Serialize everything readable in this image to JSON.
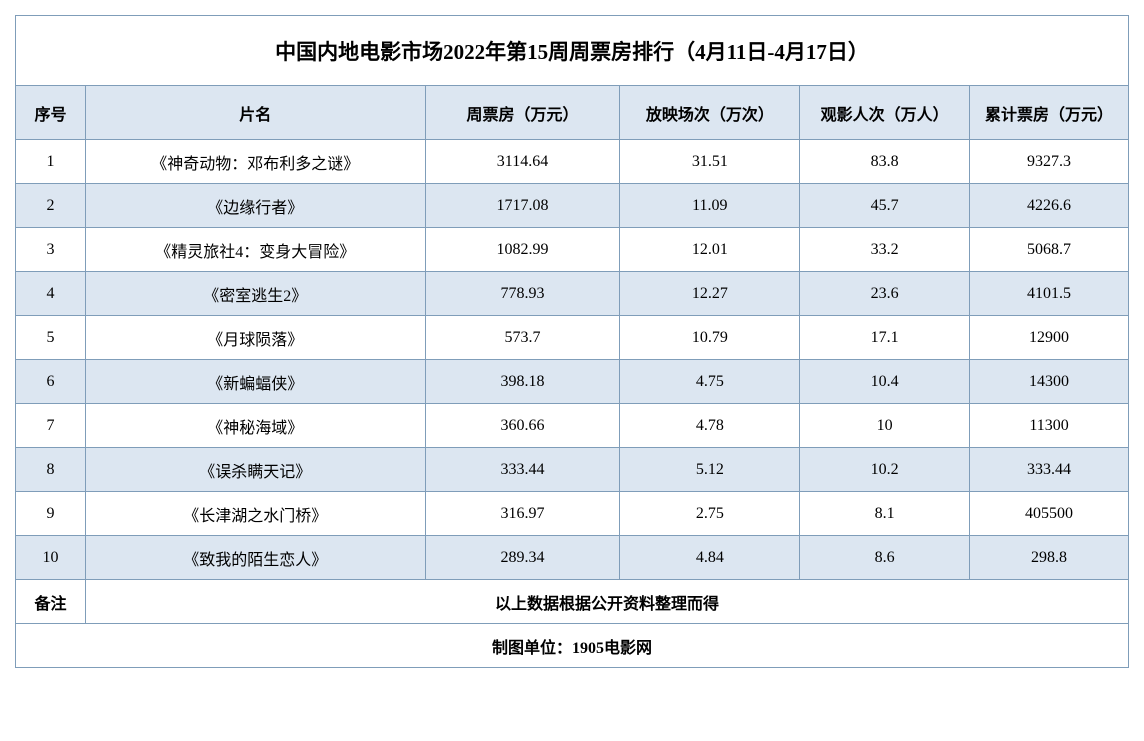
{
  "title": "中国内地电影市场2022年第15周周票房排行（4月11日-4月17日）",
  "columns": {
    "rank": "序号",
    "name": "片名",
    "weekly_box": "周票房（万元）",
    "screenings": "放映场次（万次）",
    "audience": "观影人次（万人）",
    "total_box": "累计票房（万元）"
  },
  "rows": [
    {
      "rank": "1",
      "name": "《神奇动物：邓布利多之谜》",
      "weekly_box": "3114.64",
      "screenings": "31.51",
      "audience": "83.8",
      "total_box": "9327.3"
    },
    {
      "rank": "2",
      "name": "《边缘行者》",
      "weekly_box": "1717.08",
      "screenings": "11.09",
      "audience": "45.7",
      "total_box": "4226.6"
    },
    {
      "rank": "3",
      "name": "《精灵旅社4：变身大冒险》",
      "weekly_box": "1082.99",
      "screenings": "12.01",
      "audience": "33.2",
      "total_box": "5068.7"
    },
    {
      "rank": "4",
      "name": "《密室逃生2》",
      "weekly_box": "778.93",
      "screenings": "12.27",
      "audience": "23.6",
      "total_box": "4101.5"
    },
    {
      "rank": "5",
      "name": "《月球陨落》",
      "weekly_box": "573.7",
      "screenings": "10.79",
      "audience": "17.1",
      "total_box": "12900"
    },
    {
      "rank": "6",
      "name": "《新蝙蝠侠》",
      "weekly_box": "398.18",
      "screenings": "4.75",
      "audience": "10.4",
      "total_box": "14300"
    },
    {
      "rank": "7",
      "name": "《神秘海域》",
      "weekly_box": "360.66",
      "screenings": "4.78",
      "audience": "10",
      "total_box": "11300"
    },
    {
      "rank": "8",
      "name": "《误杀瞒天记》",
      "weekly_box": "333.44",
      "screenings": "5.12",
      "audience": "10.2",
      "total_box": "333.44"
    },
    {
      "rank": "9",
      "name": "《长津湖之水门桥》",
      "weekly_box": "316.97",
      "screenings": "2.75",
      "audience": "8.1",
      "total_box": "405500"
    },
    {
      "rank": "10",
      "name": "《致我的陌生恋人》",
      "weekly_box": "289.34",
      "screenings": "4.84",
      "audience": "8.6",
      "total_box": "298.8"
    }
  ],
  "note_label": "备注",
  "note_text": "以上数据根据公开资料整理而得",
  "source_text": "制图单位：1905电影网",
  "styles": {
    "border_color": "#7f9db9",
    "header_bg": "#dce6f1",
    "odd_bg": "#ffffff",
    "even_bg": "#dce6f1",
    "title_fontsize": 21,
    "cell_fontsize": 16
  }
}
